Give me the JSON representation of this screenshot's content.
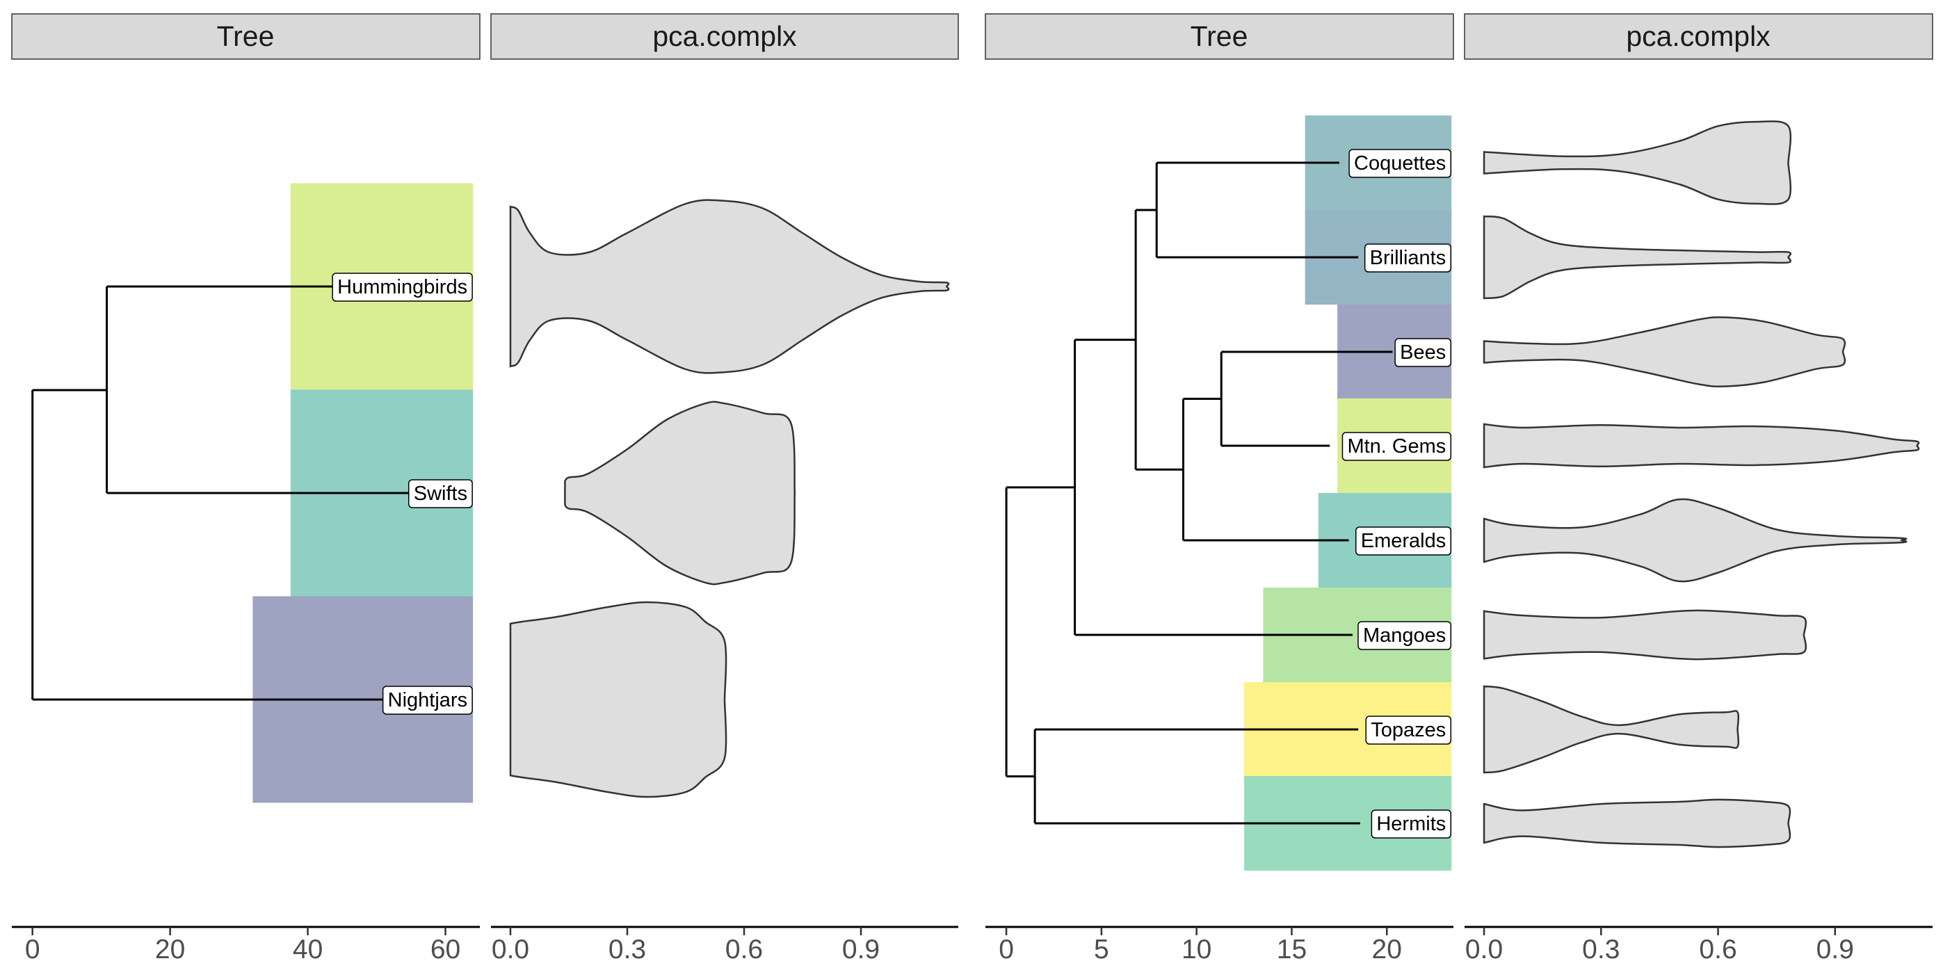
{
  "chart_data": [
    {
      "type": "phylogenetic-tree",
      "title": "Tree",
      "xlim": [
        -3,
        65
      ],
      "x_ticks": [
        0,
        20,
        40,
        60
      ],
      "tips": [
        {
          "label": "Hummingbirds",
          "color": "#d9ed92"
        },
        {
          "label": "Swifts",
          "color": "#8fcfc4"
        },
        {
          "label": "Nightjars",
          "color": "#9ea3c2"
        }
      ],
      "clades": [
        {
          "tip": "Hummingbirds",
          "x_start": 37.5,
          "x_end": 64
        },
        {
          "tip": "Swifts",
          "x_start": 37.5,
          "x_end": 64
        },
        {
          "tip": "Nightjars",
          "x_start": 32,
          "x_end": 64
        }
      ],
      "edges": [
        {
          "x_start": 0,
          "x_end": 10.8,
          "from": "root",
          "to": "n1"
        },
        {
          "x_start": 10.8,
          "x_end": 56,
          "from": "n1",
          "to": "Hummingbirds"
        },
        {
          "x_start": 10.8,
          "x_end": 55,
          "from": "n1",
          "to": "Swifts"
        },
        {
          "x_start": 0,
          "x_end": 52,
          "from": "root",
          "to": "Nightjars"
        }
      ]
    },
    {
      "type": "violin",
      "title": "pca.complx",
      "xlim": [
        -0.05,
        1.15
      ],
      "x_ticks": [
        0.0,
        0.3,
        0.6,
        0.9
      ],
      "x_tick_labels": [
        "0.0",
        "0.3",
        "0.6",
        "0.9"
      ],
      "fill": "#dedede",
      "series": [
        {
          "category": "Hummingbirds",
          "profile": [
            [
              0.0,
              0.82
            ],
            [
              0.02,
              0.78
            ],
            [
              0.05,
              0.55
            ],
            [
              0.1,
              0.35
            ],
            [
              0.2,
              0.35
            ],
            [
              0.3,
              0.55
            ],
            [
              0.45,
              0.85
            ],
            [
              0.55,
              0.88
            ],
            [
              0.65,
              0.8
            ],
            [
              0.75,
              0.55
            ],
            [
              0.85,
              0.3
            ],
            [
              0.95,
              0.12
            ],
            [
              1.05,
              0.05
            ],
            [
              1.12,
              0.04
            ],
            [
              1.12,
              0.0
            ]
          ]
        },
        {
          "category": "Swifts",
          "profile": [
            [
              0.14,
              0.12
            ],
            [
              0.15,
              0.16
            ],
            [
              0.2,
              0.2
            ],
            [
              0.3,
              0.45
            ],
            [
              0.4,
              0.75
            ],
            [
              0.5,
              0.92
            ],
            [
              0.55,
              0.92
            ],
            [
              0.65,
              0.82
            ],
            [
              0.72,
              0.72
            ],
            [
              0.73,
              0.0
            ]
          ]
        },
        {
          "category": "Nightjars",
          "profile": [
            [
              0.0,
              0.78
            ],
            [
              0.03,
              0.8
            ],
            [
              0.12,
              0.85
            ],
            [
              0.25,
              0.95
            ],
            [
              0.35,
              1.0
            ],
            [
              0.45,
              0.95
            ],
            [
              0.5,
              0.8
            ],
            [
              0.55,
              0.6
            ],
            [
              0.55,
              0.0
            ]
          ]
        }
      ]
    },
    {
      "type": "phylogenetic-tree",
      "title": "Tree",
      "xlim": [
        -1.1,
        23.5
      ],
      "x_ticks": [
        0,
        5,
        10,
        15,
        20
      ],
      "tips": [
        {
          "label": "Coquettes",
          "color": "#94bec4"
        },
        {
          "label": "Brilliants",
          "color": "#94b5c4"
        },
        {
          "label": "Bees",
          "color": "#9ea3c2"
        },
        {
          "label": "Mtn. Gems",
          "color": "#d9ed92"
        },
        {
          "label": "Emeralds",
          "color": "#8fcfc4"
        },
        {
          "label": "Mangoes",
          "color": "#b5e4a5"
        },
        {
          "label": "Topazes",
          "color": "#fdf28a"
        },
        {
          "label": "Hermits",
          "color": "#99dbbd"
        }
      ],
      "clades": [
        {
          "tip": "Coquettes",
          "x_start": 15.7,
          "x_end": 23.4
        },
        {
          "tip": "Brilliants",
          "x_start": 15.7,
          "x_end": 23.4
        },
        {
          "tip": "Bees",
          "x_start": 17.4,
          "x_end": 23.4
        },
        {
          "tip": "Mtn. Gems",
          "x_start": 17.4,
          "x_end": 23.4
        },
        {
          "tip": "Emeralds",
          "x_start": 16.4,
          "x_end": 23.4
        },
        {
          "tip": "Mangoes",
          "x_start": 13.5,
          "x_end": 23.4
        },
        {
          "tip": "Topazes",
          "x_start": 12.5,
          "x_end": 23.4
        },
        {
          "tip": "Hermits",
          "x_start": 12.5,
          "x_end": 23.4
        }
      ],
      "edges": [
        {
          "x_start": 7.9,
          "x_end": 17.5,
          "to": "Coquettes"
        },
        {
          "x_start": 7.9,
          "x_end": 18.5,
          "to": "Brilliants"
        },
        {
          "x_start": 6.8,
          "x_end": 7.9,
          "to": "n_cb"
        },
        {
          "x_start": 11.3,
          "x_end": 20.3,
          "to": "Bees"
        },
        {
          "x_start": 11.3,
          "x_end": 17.0,
          "to": "Mtn. Gems"
        },
        {
          "x_start": 9.3,
          "x_end": 11.3,
          "to": "n_bm"
        },
        {
          "x_start": 9.3,
          "x_end": 18.0,
          "to": "Emeralds"
        },
        {
          "x_start": 6.8,
          "x_end": 9.3,
          "to": "n_bme"
        },
        {
          "x_start": 3.6,
          "x_end": 6.8,
          "to": "n_a"
        },
        {
          "x_start": 3.6,
          "x_end": 18.2,
          "to": "Mangoes"
        },
        {
          "x_start": 0.0,
          "x_end": 3.6,
          "to": "n_b"
        },
        {
          "x_start": 1.5,
          "x_end": 18.5,
          "to": "Topazes"
        },
        {
          "x_start": 1.5,
          "x_end": 18.6,
          "to": "Hermits"
        },
        {
          "x_start": 0.0,
          "x_end": 1.5,
          "to": "n_th"
        }
      ]
    },
    {
      "type": "violin",
      "title": "pca.complx",
      "xlim": [
        -0.05,
        1.15
      ],
      "x_ticks": [
        0.0,
        0.3,
        0.6,
        0.9
      ],
      "x_tick_labels": [
        "0.0",
        "0.3",
        "0.6",
        "0.9"
      ],
      "fill": "#dedede",
      "series": [
        {
          "category": "Coquettes",
          "profile": [
            [
              0.0,
              0.25
            ],
            [
              0.2,
              0.15
            ],
            [
              0.35,
              0.2
            ],
            [
              0.5,
              0.5
            ],
            [
              0.6,
              0.85
            ],
            [
              0.7,
              0.95
            ],
            [
              0.78,
              0.85
            ],
            [
              0.78,
              0.0
            ]
          ]
        },
        {
          "category": "Brilliants",
          "profile": [
            [
              0.0,
              0.95
            ],
            [
              0.05,
              0.9
            ],
            [
              0.12,
              0.55
            ],
            [
              0.2,
              0.3
            ],
            [
              0.35,
              0.2
            ],
            [
              0.55,
              0.15
            ],
            [
              0.7,
              0.12
            ],
            [
              0.78,
              0.12
            ],
            [
              0.78,
              0.0
            ]
          ]
        },
        {
          "category": "Bees",
          "profile": [
            [
              0.0,
              0.25
            ],
            [
              0.1,
              0.2
            ],
            [
              0.25,
              0.2
            ],
            [
              0.4,
              0.45
            ],
            [
              0.55,
              0.75
            ],
            [
              0.62,
              0.8
            ],
            [
              0.72,
              0.7
            ],
            [
              0.85,
              0.4
            ],
            [
              0.92,
              0.3
            ],
            [
              0.92,
              0.0
            ]
          ]
        },
        {
          "category": "Mtn. Gems",
          "profile": [
            [
              0.0,
              0.5
            ],
            [
              0.1,
              0.42
            ],
            [
              0.3,
              0.48
            ],
            [
              0.5,
              0.42
            ],
            [
              0.7,
              0.45
            ],
            [
              0.9,
              0.35
            ],
            [
              1.05,
              0.15
            ],
            [
              1.11,
              0.1
            ],
            [
              1.11,
              0.0
            ]
          ]
        },
        {
          "category": "Emeralds",
          "profile": [
            [
              0.0,
              0.5
            ],
            [
              0.08,
              0.35
            ],
            [
              0.25,
              0.3
            ],
            [
              0.4,
              0.6
            ],
            [
              0.5,
              0.95
            ],
            [
              0.6,
              0.75
            ],
            [
              0.75,
              0.25
            ],
            [
              0.9,
              0.1
            ],
            [
              1.07,
              0.05
            ],
            [
              1.07,
              0.0
            ]
          ]
        },
        {
          "category": "Mangoes",
          "profile": [
            [
              0.0,
              0.55
            ],
            [
              0.1,
              0.45
            ],
            [
              0.3,
              0.4
            ],
            [
              0.5,
              0.55
            ],
            [
              0.6,
              0.55
            ],
            [
              0.75,
              0.45
            ],
            [
              0.82,
              0.4
            ],
            [
              0.82,
              0.0
            ]
          ]
        },
        {
          "category": "Topazes",
          "profile": [
            [
              0.0,
              1.0
            ],
            [
              0.05,
              0.95
            ],
            [
              0.15,
              0.65
            ],
            [
              0.25,
              0.3
            ],
            [
              0.35,
              0.1
            ],
            [
              0.5,
              0.35
            ],
            [
              0.62,
              0.4
            ],
            [
              0.65,
              0.4
            ],
            [
              0.65,
              0.0
            ]
          ]
        },
        {
          "category": "Hermits",
          "profile": [
            [
              0.0,
              0.45
            ],
            [
              0.1,
              0.3
            ],
            [
              0.3,
              0.45
            ],
            [
              0.5,
              0.5
            ],
            [
              0.6,
              0.55
            ],
            [
              0.72,
              0.5
            ],
            [
              0.78,
              0.4
            ],
            [
              0.78,
              0.0
            ]
          ]
        }
      ]
    }
  ]
}
